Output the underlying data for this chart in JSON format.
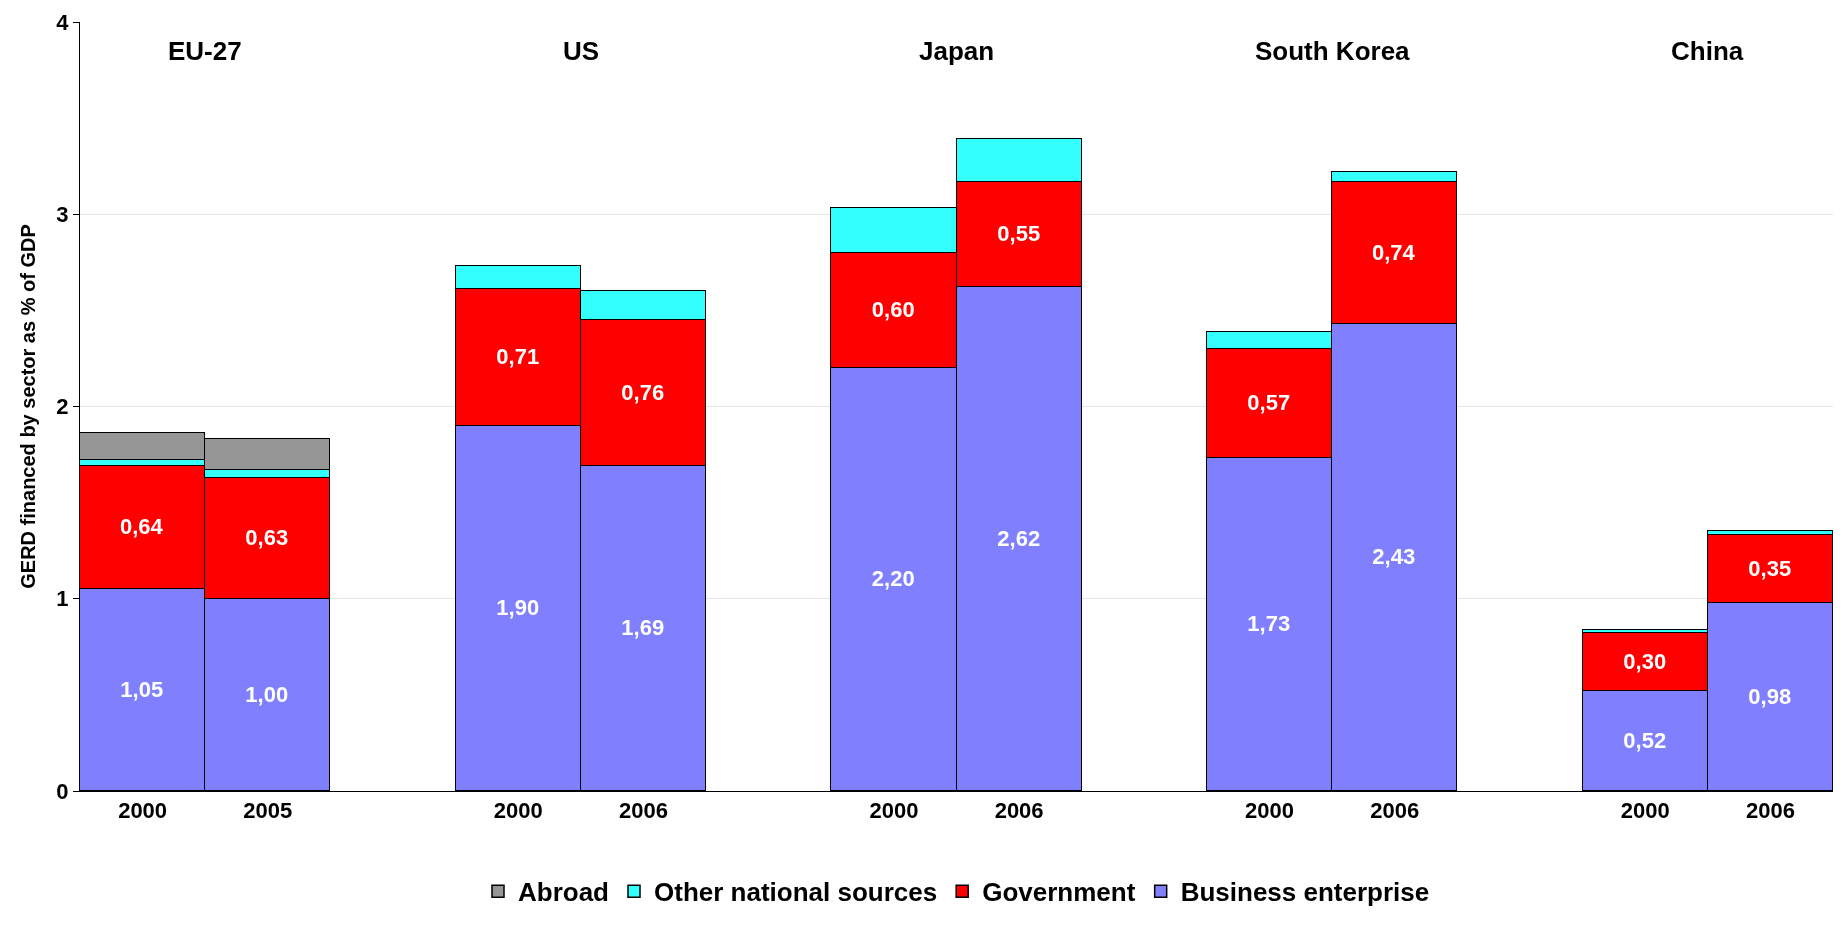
{
  "chart_data": {
    "type": "bar",
    "stacked": true,
    "ylabel": "GERD financed by sector as % of GDP",
    "categories": [
      "2000",
      "2005",
      null,
      "2000",
      "2006",
      null,
      "2000",
      "2006",
      null,
      "2000",
      "2006",
      null,
      "2000",
      "2006"
    ],
    "series": [
      {
        "name": "Business enterprise",
        "color": "#8080ff",
        "values": [
          1.05,
          1.0,
          null,
          1.9,
          1.69,
          null,
          2.2,
          2.62,
          null,
          1.73,
          2.43,
          null,
          0.52,
          0.98
        ],
        "value_labels": [
          "1,05",
          "1,00",
          null,
          "1,90",
          "1,69",
          null,
          "2,20",
          "2,62",
          null,
          "1,73",
          "2,43",
          null,
          "0,52",
          "0,98"
        ]
      },
      {
        "name": "Government",
        "color": "#ff0000",
        "values": [
          0.64,
          0.63,
          null,
          0.71,
          0.76,
          null,
          0.6,
          0.55,
          null,
          0.57,
          0.74,
          null,
          0.3,
          0.35
        ],
        "value_labels": [
          "0,64",
          "0,63",
          null,
          "0,71",
          "0,76",
          null,
          "0,60",
          "0,55",
          null,
          "0,57",
          "0,74",
          null,
          "0,30",
          "0,35"
        ]
      },
      {
        "name": "Other national sources",
        "color": "#33ffff",
        "values": [
          0.03,
          0.04,
          null,
          0.12,
          0.15,
          null,
          0.23,
          0.22,
          null,
          0.09,
          0.05,
          null,
          0.02,
          0.02
        ]
      },
      {
        "name": "Abroad",
        "color": "#969696",
        "values": [
          0.14,
          0.16,
          null,
          null,
          null,
          null,
          null,
          null,
          null,
          null,
          null,
          null,
          null,
          null
        ]
      }
    ],
    "annotations": [
      "EU-27",
      "US",
      "Japan",
      "South Korea",
      "China"
    ],
    "ylim": [
      0,
      4
    ],
    "yticks": [
      0,
      1,
      2,
      3,
      4
    ],
    "grid": "y",
    "legend": "bottom"
  }
}
